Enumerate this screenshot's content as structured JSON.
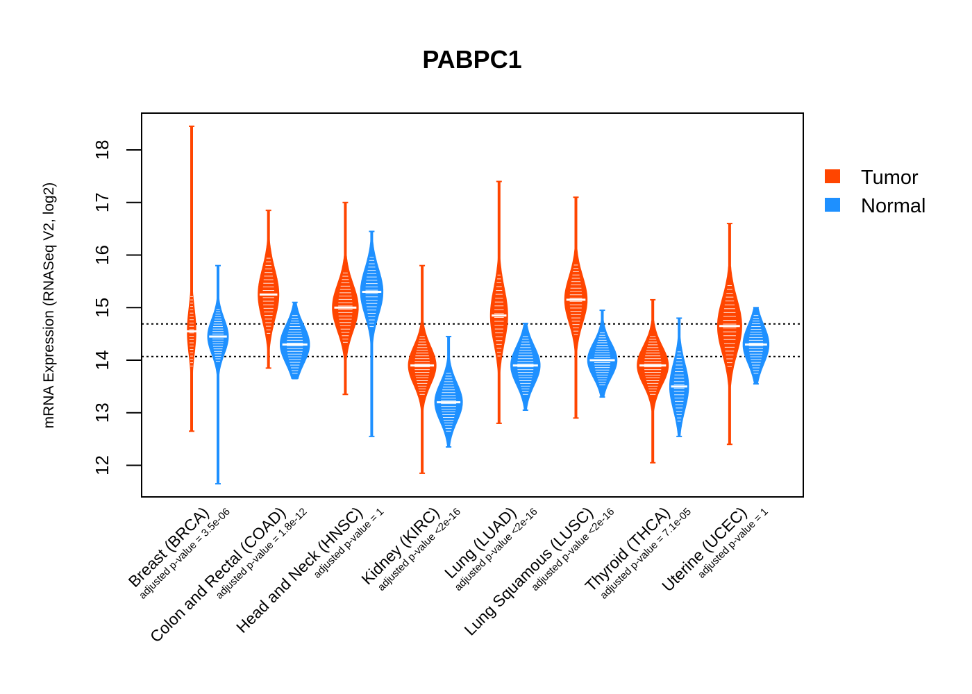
{
  "chart_data": {
    "type": "violin",
    "title": "PABPC1",
    "xlabel": "",
    "ylabel": "mRNA Expression (RNASeq V2, log2)",
    "ylim": [
      11.4,
      18.7
    ],
    "yticks": [
      12,
      13,
      14,
      15,
      16,
      17,
      18
    ],
    "reference_lines": [
      14.07,
      14.69
    ],
    "legend": [
      {
        "name": "Tumor",
        "color": "#FF4500"
      },
      {
        "name": "Normal",
        "color": "#1E90FF"
      }
    ],
    "legend_position": "right",
    "categories": [
      {
        "label": "Breast (BRCA)",
        "pvalue": "adjusted p-value = 3.5e-06",
        "tumor": {
          "median": 14.55,
          "q1": 14.25,
          "q3": 14.85,
          "min": 12.65,
          "max": 18.45,
          "width": 0.25
        },
        "normal": {
          "median": 14.45,
          "q1": 14.25,
          "q3": 14.7,
          "min": 11.65,
          "max": 15.8,
          "width": 0.6
        }
      },
      {
        "label": "Colon and Rectal (COAD)",
        "pvalue": "adjusted p-value = 1.8e-12",
        "tumor": {
          "median": 15.25,
          "q1": 14.9,
          "q3": 15.55,
          "min": 13.85,
          "max": 16.85,
          "width": 0.6
        },
        "normal": {
          "median": 14.3,
          "q1": 14.05,
          "q3": 14.55,
          "min": 13.65,
          "max": 15.1,
          "width": 0.85
        }
      },
      {
        "label": "Head and Neck (HNSC)",
        "pvalue": "adjusted p-value = 1",
        "tumor": {
          "median": 15.0,
          "q1": 14.7,
          "q3": 15.3,
          "min": 13.35,
          "max": 17.0,
          "width": 0.75
        },
        "normal": {
          "median": 15.3,
          "q1": 15.0,
          "q3": 15.6,
          "min": 12.55,
          "max": 16.45,
          "width": 0.65
        }
      },
      {
        "label": "Kidney (KIRC)",
        "pvalue": "adjusted p-value <2e-16",
        "tumor": {
          "median": 13.9,
          "q1": 13.65,
          "q3": 14.15,
          "min": 11.85,
          "max": 15.8,
          "width": 0.8
        },
        "normal": {
          "median": 13.2,
          "q1": 12.95,
          "q3": 13.45,
          "min": 12.35,
          "max": 14.45,
          "width": 0.8
        }
      },
      {
        "label": "Lung (LUAD)",
        "pvalue": "adjusted p-value <2e-16",
        "tumor": {
          "median": 14.85,
          "q1": 14.5,
          "q3": 15.2,
          "min": 12.8,
          "max": 17.4,
          "width": 0.5
        },
        "normal": {
          "median": 13.9,
          "q1": 13.65,
          "q3": 14.15,
          "min": 13.05,
          "max": 14.7,
          "width": 0.85
        }
      },
      {
        "label": "Lung Squamous (LUSC)",
        "pvalue": "adjusted p-value <2e-16",
        "tumor": {
          "median": 15.15,
          "q1": 14.85,
          "q3": 15.45,
          "min": 12.9,
          "max": 17.1,
          "width": 0.65
        },
        "normal": {
          "median": 14.0,
          "q1": 13.8,
          "q3": 14.25,
          "min": 13.3,
          "max": 14.95,
          "width": 0.85
        }
      },
      {
        "label": "Thyroid (THCA)",
        "pvalue": "adjusted p-value = 7.1e-05",
        "tumor": {
          "median": 13.9,
          "q1": 13.65,
          "q3": 14.15,
          "min": 12.05,
          "max": 15.15,
          "width": 0.9
        },
        "normal": {
          "median": 13.5,
          "q1": 13.2,
          "q3": 13.8,
          "min": 12.55,
          "max": 14.8,
          "width": 0.55
        }
      },
      {
        "label": "Uterine (UCEC)",
        "pvalue": "adjusted p-value = 1",
        "tumor": {
          "median": 14.65,
          "q1": 14.3,
          "q3": 15.0,
          "min": 12.4,
          "max": 16.6,
          "width": 0.7
        },
        "normal": {
          "median": 14.3,
          "q1": 14.05,
          "q3": 14.55,
          "min": 13.55,
          "max": 15.0,
          "width": 0.75
        }
      }
    ]
  }
}
